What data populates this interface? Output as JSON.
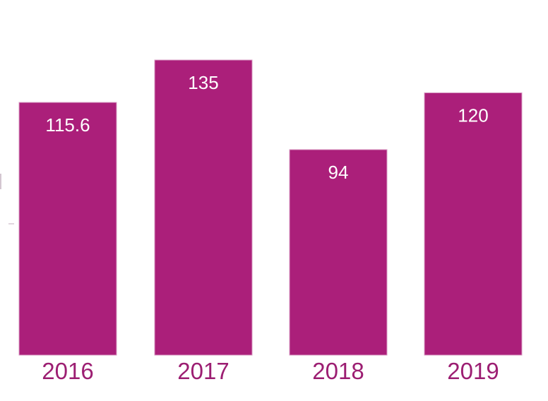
{
  "chart_data": {
    "type": "bar",
    "categories": [
      "2016",
      "2017",
      "2018",
      "2019"
    ],
    "values": [
      115.6,
      135,
      94,
      120
    ],
    "value_labels": [
      "115.6",
      "135",
      "94",
      "120"
    ],
    "title": "",
    "xlabel": "",
    "ylabel": "",
    "ylim": [
      0,
      135
    ],
    "grid": false,
    "legend": "none",
    "colors": {
      "bar": "#ab1f7a",
      "bar_edge": "#d89cc4",
      "tick_label": "#9c1e72",
      "value_label": "#ffffff"
    }
  }
}
